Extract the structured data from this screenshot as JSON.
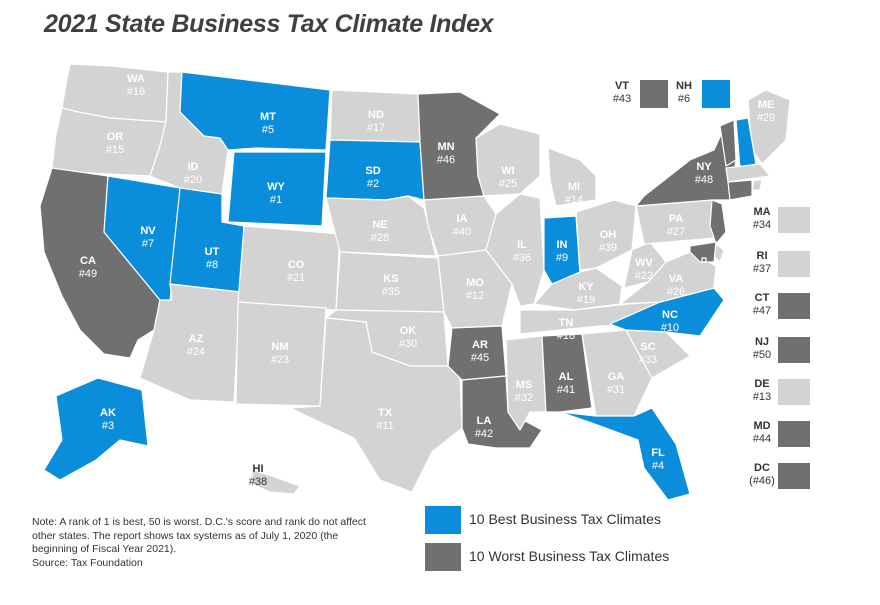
{
  "title": "2021 State Business Tax Climate Index",
  "colors": {
    "best": "#0a8ddb",
    "worst": "#707070",
    "neutral": "#d3d3d3",
    "outline": "#ffffff"
  },
  "legend": [
    {
      "key": "best",
      "label": "10 Best Business Tax Climates"
    },
    {
      "key": "worst",
      "label": "10 Worst Business Tax Climates"
    }
  ],
  "note": {
    "text": "Note: A rank of 1 is best, 50 is worst. D.C.'s score and rank do not affect other states. The report shows tax systems as of July 1, 2020 (the beginning of Fiscal Year 2021).",
    "source": "Source: Tax Foundation"
  },
  "states": [
    {
      "abbr": "WA",
      "rank": "#16",
      "cat": "neutral"
    },
    {
      "abbr": "OR",
      "rank": "#15",
      "cat": "neutral"
    },
    {
      "abbr": "CA",
      "rank": "#49",
      "cat": "worst"
    },
    {
      "abbr": "NV",
      "rank": "#7",
      "cat": "best"
    },
    {
      "abbr": "ID",
      "rank": "#20",
      "cat": "neutral"
    },
    {
      "abbr": "MT",
      "rank": "#5",
      "cat": "best"
    },
    {
      "abbr": "WY",
      "rank": "#1",
      "cat": "best"
    },
    {
      "abbr": "UT",
      "rank": "#8",
      "cat": "best"
    },
    {
      "abbr": "AZ",
      "rank": "#24",
      "cat": "neutral"
    },
    {
      "abbr": "CO",
      "rank": "#21",
      "cat": "neutral"
    },
    {
      "abbr": "NM",
      "rank": "#23",
      "cat": "neutral"
    },
    {
      "abbr": "ND",
      "rank": "#17",
      "cat": "neutral"
    },
    {
      "abbr": "SD",
      "rank": "#2",
      "cat": "best"
    },
    {
      "abbr": "NE",
      "rank": "#28",
      "cat": "neutral"
    },
    {
      "abbr": "KS",
      "rank": "#35",
      "cat": "neutral"
    },
    {
      "abbr": "OK",
      "rank": "#30",
      "cat": "neutral"
    },
    {
      "abbr": "TX",
      "rank": "#11",
      "cat": "neutral"
    },
    {
      "abbr": "MN",
      "rank": "#46",
      "cat": "worst"
    },
    {
      "abbr": "IA",
      "rank": "#40",
      "cat": "neutral"
    },
    {
      "abbr": "MO",
      "rank": "#12",
      "cat": "neutral"
    },
    {
      "abbr": "AR",
      "rank": "#45",
      "cat": "worst"
    },
    {
      "abbr": "LA",
      "rank": "#42",
      "cat": "worst"
    },
    {
      "abbr": "WI",
      "rank": "#25",
      "cat": "neutral"
    },
    {
      "abbr": "IL",
      "rank": "#36",
      "cat": "neutral"
    },
    {
      "abbr": "MI",
      "rank": "#14",
      "cat": "neutral"
    },
    {
      "abbr": "IN",
      "rank": "#9",
      "cat": "best"
    },
    {
      "abbr": "OH",
      "rank": "#39",
      "cat": "neutral"
    },
    {
      "abbr": "KY",
      "rank": "#19",
      "cat": "neutral"
    },
    {
      "abbr": "TN",
      "rank": "#18",
      "cat": "neutral"
    },
    {
      "abbr": "MS",
      "rank": "#32",
      "cat": "neutral"
    },
    {
      "abbr": "AL",
      "rank": "#41",
      "cat": "worst"
    },
    {
      "abbr": "GA",
      "rank": "#31",
      "cat": "neutral"
    },
    {
      "abbr": "FL",
      "rank": "#4",
      "cat": "best"
    },
    {
      "abbr": "SC",
      "rank": "#33",
      "cat": "neutral"
    },
    {
      "abbr": "NC",
      "rank": "#10",
      "cat": "best"
    },
    {
      "abbr": "VA",
      "rank": "#26",
      "cat": "neutral"
    },
    {
      "abbr": "WV",
      "rank": "#22",
      "cat": "neutral"
    },
    {
      "abbr": "PA",
      "rank": "#27",
      "cat": "neutral"
    },
    {
      "abbr": "NY",
      "rank": "#48",
      "cat": "worst"
    },
    {
      "abbr": "ME",
      "rank": "#29",
      "cat": "neutral"
    },
    {
      "abbr": "AK",
      "rank": "#3",
      "cat": "best"
    },
    {
      "abbr": "HI",
      "rank": "#38",
      "cat": "neutral"
    }
  ],
  "callouts_top": [
    {
      "abbr": "VT",
      "rank": "#43",
      "cat": "worst"
    },
    {
      "abbr": "NH",
      "rank": "#6",
      "cat": "best"
    }
  ],
  "callouts_side": [
    {
      "abbr": "MA",
      "rank": "#34",
      "cat": "neutral"
    },
    {
      "abbr": "RI",
      "rank": "#37",
      "cat": "neutral"
    },
    {
      "abbr": "CT",
      "rank": "#47",
      "cat": "worst"
    },
    {
      "abbr": "NJ",
      "rank": "#50",
      "cat": "worst"
    },
    {
      "abbr": "DE",
      "rank": "#13",
      "cat": "neutral"
    },
    {
      "abbr": "MD",
      "rank": "#44",
      "cat": "worst"
    },
    {
      "abbr": "DC",
      "rank": "(#46)",
      "cat": "worst"
    }
  ]
}
